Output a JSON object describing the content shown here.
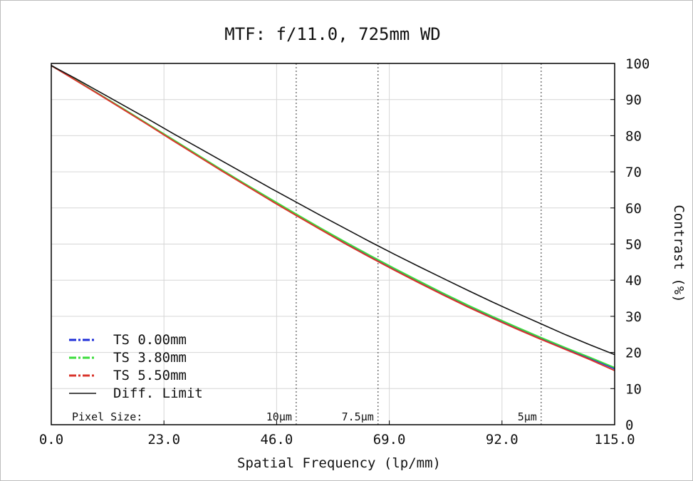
{
  "chart_data": {
    "type": "line",
    "title": "MTF: f/11.0, 725mm WD",
    "xlabel": "Spatial Frequency (lp/mm)",
    "ylabel": "Contrast (%)",
    "xlim": [
      0,
      115
    ],
    "ylim": [
      0,
      100
    ],
    "xticks": [
      0,
      23,
      46,
      69,
      92,
      115
    ],
    "xtick_labels": [
      "0.0",
      "23.0",
      "46.0",
      "69.0",
      "92.0",
      "115.0"
    ],
    "yticks": [
      0,
      10,
      20,
      30,
      40,
      50,
      60,
      70,
      80,
      90,
      100
    ],
    "ytick_labels": [
      "0",
      "10",
      "20",
      "30",
      "40",
      "50",
      "60",
      "70",
      "80",
      "90",
      "100"
    ],
    "y_axis_side": "right",
    "grid": true,
    "legend_position": "bottom-left",
    "pixel_size_label": "Pixel Size:",
    "pixel_size_markers": [
      {
        "label": "10µm",
        "x": 50
      },
      {
        "label": "7.5µm",
        "x": 66.7
      },
      {
        "label": "5µm",
        "x": 100
      }
    ],
    "x": [
      0,
      5,
      10,
      15,
      20,
      25,
      30,
      35,
      40,
      45,
      50,
      55,
      60,
      65,
      70,
      75,
      80,
      85,
      90,
      95,
      100,
      105,
      110,
      115
    ],
    "series": [
      {
        "name": "TS 0.00mm",
        "color": "#1f2fd8",
        "style": "dash-dot",
        "values": [
          99.4,
          95.4,
          91.3,
          87.1,
          82.9,
          78.7,
          74.5,
          70.3,
          66.2,
          62.2,
          58.2,
          54.3,
          50.4,
          46.7,
          43.1,
          39.6,
          36.2,
          32.9,
          29.8,
          26.8,
          23.9,
          21.1,
          18.4,
          15.5
        ]
      },
      {
        "name": "TS 3.80mm",
        "color": "#3ddc3d",
        "style": "dash-dot",
        "values": [
          99.4,
          95.4,
          91.3,
          87.2,
          83.0,
          78.8,
          74.6,
          70.4,
          66.3,
          62.3,
          58.3,
          54.4,
          50.6,
          46.9,
          43.3,
          39.8,
          36.4,
          33.1,
          30.0,
          27.0,
          24.1,
          21.3,
          18.6,
          15.8
        ]
      },
      {
        "name": "TS 5.50mm",
        "color": "#d9342b",
        "style": "dash-dot",
        "values": [
          99.4,
          95.3,
          91.2,
          87.0,
          82.8,
          78.5,
          74.3,
          70.1,
          66.0,
          61.9,
          57.9,
          54.0,
          50.1,
          46.4,
          42.8,
          39.3,
          35.9,
          32.6,
          29.5,
          26.5,
          23.6,
          20.8,
          18.0,
          15.0
        ]
      },
      {
        "name": "Diff. Limit",
        "color": "#111111",
        "style": "solid",
        "values": [
          99.4,
          95.8,
          92.0,
          88.2,
          84.4,
          80.5,
          76.7,
          72.9,
          69.1,
          65.3,
          61.6,
          57.9,
          54.3,
          50.7,
          47.2,
          43.8,
          40.5,
          37.2,
          34.0,
          30.9,
          27.9,
          24.9,
          22.1,
          19.4
        ]
      }
    ]
  }
}
